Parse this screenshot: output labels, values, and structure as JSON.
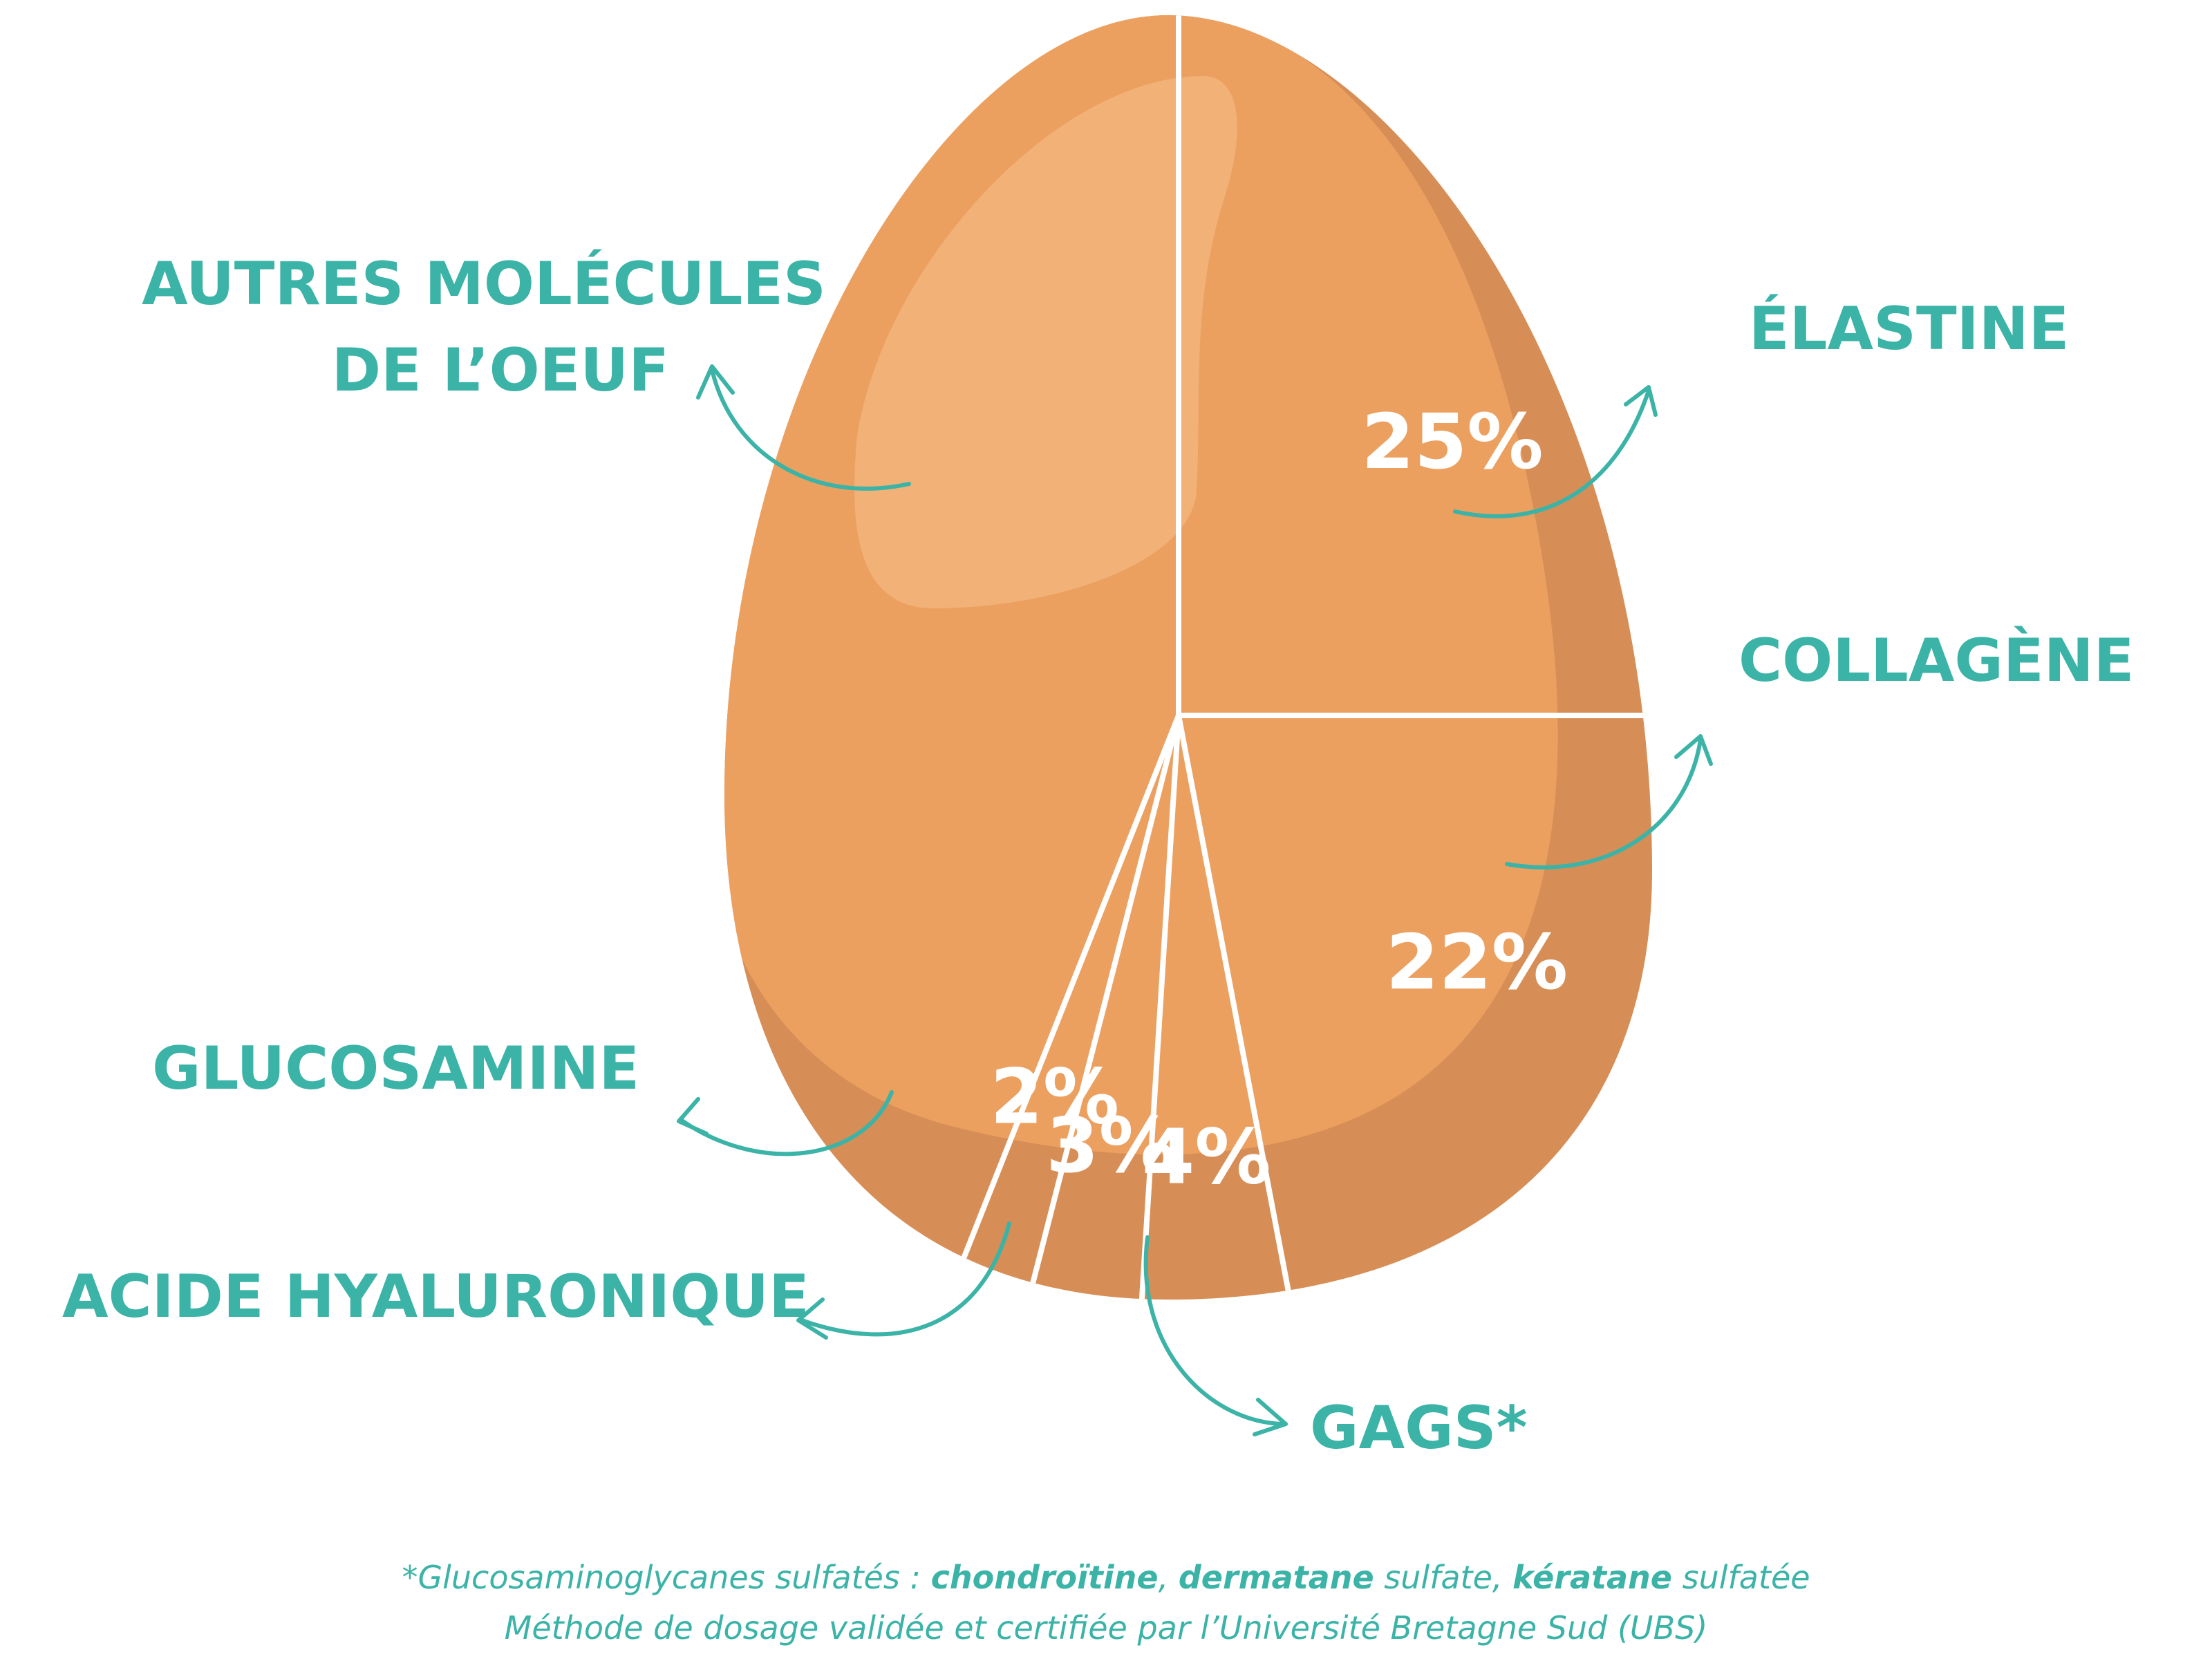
{
  "chart_data": {
    "type": "pie",
    "title": "",
    "slices": [
      {
        "label": "ÉLASTINE",
        "value": 25,
        "value_label": "25%"
      },
      {
        "label": "COLLAGÈNE",
        "value": 22,
        "value_label": "22%"
      },
      {
        "label": "GAGS*",
        "value": 4,
        "value_label": "4%"
      },
      {
        "label": "ACIDE HYALURONIQUE",
        "value": 3,
        "value_label": "3%"
      },
      {
        "label": "GLUCOSAMINE",
        "value": 2,
        "value_label": "2%"
      },
      {
        "label": "AUTRES MOLÉCULES DE L’OEUF",
        "label_lines": [
          "AUTRES MOLÉCULES",
          "DE L’OEUF"
        ],
        "value": 44,
        "value_label": ""
      }
    ],
    "colors": {
      "egg": "#eca060",
      "egg_shadow": "#d78e56",
      "egg_highlight": "#f1b177",
      "accent": "#3bb3a7",
      "divider": "#ffffff"
    }
  },
  "footnote": {
    "line1": {
      "prefix": "*Glucosaminoglycanes sulfatés : ",
      "term1": "chondroïtine",
      "sep1": ", ",
      "term2": "dermatane",
      "mid": " sulfate, ",
      "term3": "kératane",
      "suffix": " sulfatée"
    },
    "line2": "Méthode de dosage validée et certifiée par l’Université Bretagne Sud (UBS)"
  }
}
